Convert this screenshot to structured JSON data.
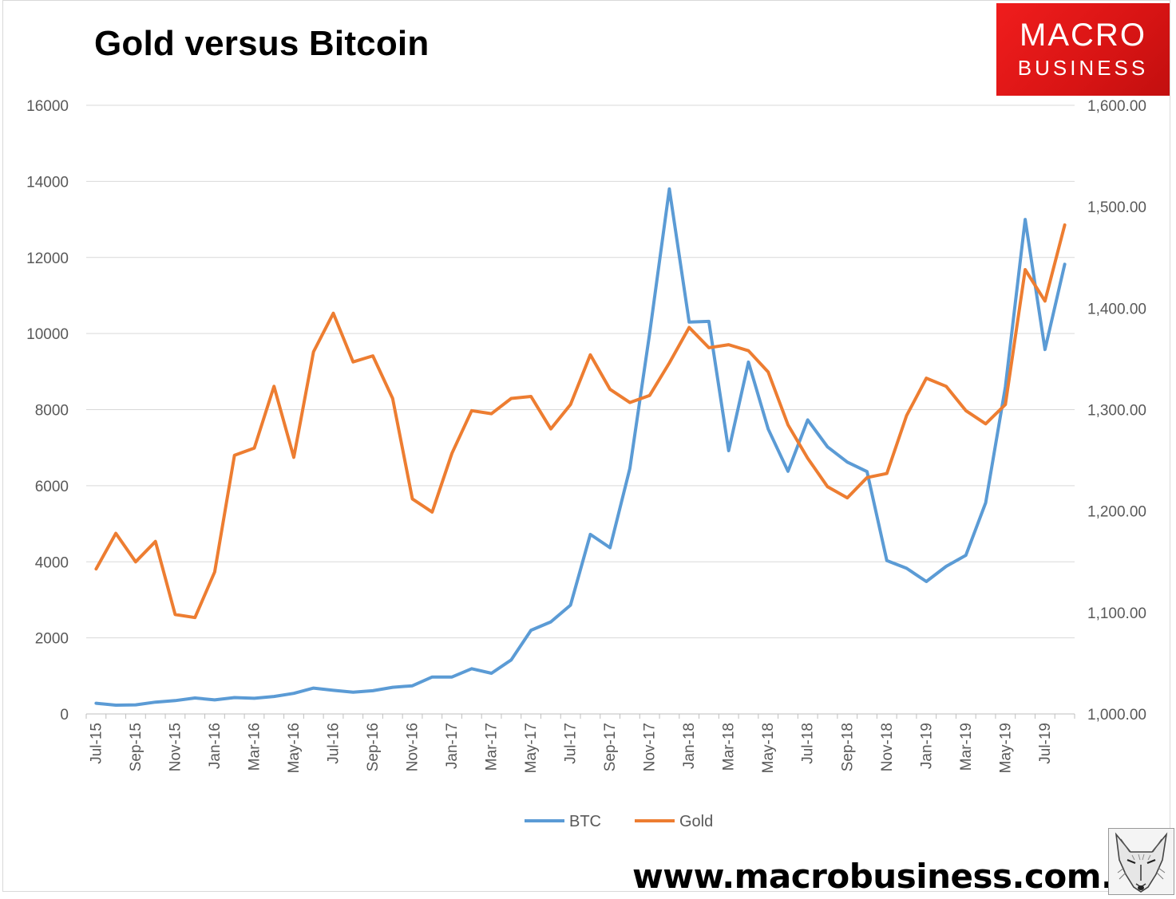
{
  "title": "Gold versus Bitcoin",
  "logo": {
    "line1": "MACRO",
    "line2": "BUSINESS"
  },
  "website": "www.macrobusiness.com.au",
  "colors": {
    "btc": "#5B9BD5",
    "gold": "#ED7D31",
    "grid": "#d9d9d9",
    "logo_red": "#e51a1a"
  },
  "icons": {
    "fox": "fox-head-sketch-icon"
  },
  "chart_data": {
    "type": "line",
    "x": [
      "Jul-15",
      "Aug-15",
      "Sep-15",
      "Oct-15",
      "Nov-15",
      "Dec-15",
      "Jan-16",
      "Feb-16",
      "Mar-16",
      "Apr-16",
      "May-16",
      "Jun-16",
      "Jul-16",
      "Aug-16",
      "Sep-16",
      "Oct-16",
      "Nov-16",
      "Dec-16",
      "Jan-17",
      "Feb-17",
      "Mar-17",
      "Apr-17",
      "May-17",
      "Jun-17",
      "Jul-17",
      "Aug-17",
      "Sep-17",
      "Oct-17",
      "Nov-17",
      "Dec-17",
      "Jan-18",
      "Feb-18",
      "Mar-18",
      "Apr-18",
      "May-18",
      "Jun-18",
      "Jul-18",
      "Aug-18",
      "Sep-18",
      "Oct-18",
      "Nov-18",
      "Dec-18",
      "Jan-19",
      "Feb-19",
      "Mar-19",
      "Apr-19",
      "May-19",
      "Jun-19",
      "Jul-19",
      "Aug-19"
    ],
    "x_tick_labels": [
      "Jul-15",
      "Sep-15",
      "Nov-15",
      "Jan-16",
      "Mar-16",
      "May-16",
      "Jul-16",
      "Sep-16",
      "Nov-16",
      "Jan-17",
      "Mar-17",
      "May-17",
      "Jul-17",
      "Sep-17",
      "Nov-17",
      "Jan-18",
      "Mar-18",
      "May-18",
      "Jul-18",
      "Sep-18",
      "Nov-18",
      "Jan-19",
      "Mar-19",
      "May-19",
      "Jul-19"
    ],
    "y_left": {
      "min": 0,
      "max": 16000,
      "ticks": [
        0,
        2000,
        4000,
        6000,
        8000,
        10000,
        12000,
        14000,
        16000
      ],
      "tick_labels": [
        "0",
        "2000",
        "4000",
        "6000",
        "8000",
        "10000",
        "12000",
        "14000",
        "16000"
      ]
    },
    "y_right": {
      "min": 1000,
      "max": 1600,
      "ticks": [
        1000,
        1100,
        1200,
        1300,
        1400,
        1500,
        1600
      ],
      "tick_labels": [
        "1,000.00",
        "1,100.00",
        "1,200.00",
        "1,300.00",
        "1,400.00",
        "1,500.00",
        "1,600.00"
      ]
    },
    "grid": true,
    "legend": "bottom",
    "series": [
      {
        "name": "BTC",
        "axis": "left",
        "color": "#5B9BD5",
        "values": [
          280,
          230,
          240,
          310,
          350,
          420,
          370,
          430,
          410,
          460,
          540,
          680,
          620,
          570,
          610,
          700,
          740,
          970,
          970,
          1190,
          1070,
          1420,
          2200,
          2420,
          2860,
          4720,
          4370,
          6450,
          10000,
          13800,
          10300,
          10320,
          6920,
          9250,
          7490,
          6380,
          7730,
          7020,
          6620,
          6370,
          4030,
          3830,
          3480,
          3880,
          4170,
          5550,
          8600,
          13000,
          9580,
          11820
        ]
      },
      {
        "name": "Gold",
        "axis": "right",
        "color": "#ED7D31",
        "values": [
          1143,
          1178,
          1150,
          1170,
          1098,
          1095,
          1140,
          1255,
          1262,
          1323,
          1253,
          1357,
          1395,
          1347,
          1353,
          1311,
          1212,
          1199,
          1257,
          1299,
          1296,
          1311,
          1313,
          1281,
          1305,
          1354,
          1320,
          1307,
          1314,
          1346,
          1381,
          1361,
          1364,
          1358,
          1337,
          1285,
          1252,
          1224,
          1213,
          1233,
          1237,
          1294,
          1331,
          1323,
          1299,
          1286,
          1305,
          1438,
          1407,
          1482
        ]
      }
    ]
  }
}
